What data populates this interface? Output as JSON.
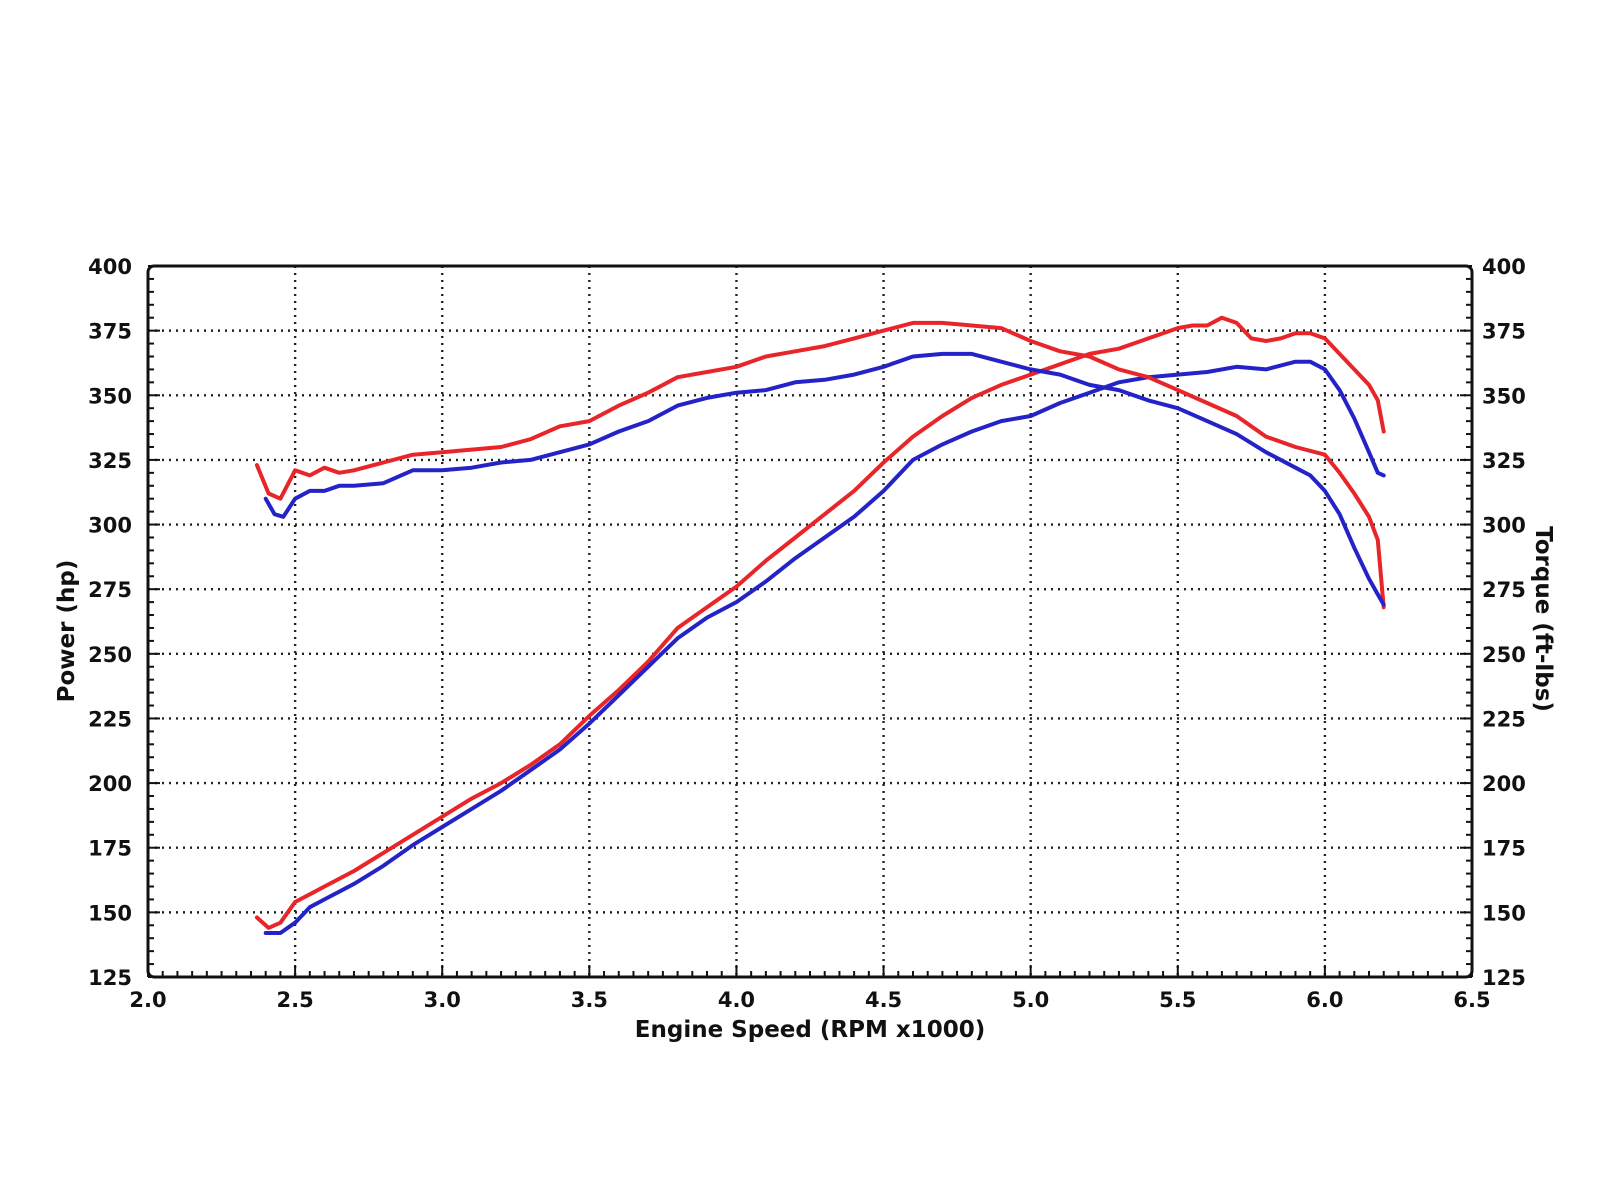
{
  "chart_data": {
    "type": "line",
    "title": "",
    "xlabel": "Engine Speed (RPM x1000)",
    "ylabel_left": "Power (hp)",
    "ylabel_right": "Torque (ft-lbs)",
    "xlim": [
      2.0,
      6.5
    ],
    "ylim": [
      125,
      400
    ],
    "y_right_lim": [
      125,
      400
    ],
    "x_ticks": [
      "2.0",
      "2.5",
      "3.0",
      "3.5",
      "4.0",
      "4.5",
      "5.0",
      "5.5",
      "6.0",
      "6.5"
    ],
    "y_ticks_left": [
      "125",
      "150",
      "175",
      "200",
      "225",
      "250",
      "275",
      "300",
      "325",
      "350",
      "375",
      "400"
    ],
    "y_ticks_right": [
      "125",
      "150",
      "175",
      "200",
      "225",
      "250",
      "275",
      "300",
      "325",
      "350",
      "375",
      "400"
    ],
    "grid": true,
    "colors": {
      "red": "#e8262a",
      "blue": "#2323c8",
      "frame": "#111111"
    },
    "series": [
      {
        "axis": "left",
        "color": "#e8262a",
        "x": [
          2.37,
          2.41,
          2.45,
          2.5,
          2.55,
          2.6,
          2.7,
          2.8,
          2.9,
          3.0,
          3.1,
          3.2,
          3.3,
          3.4,
          3.5,
          3.6,
          3.7,
          3.8,
          3.9,
          4.0,
          4.1,
          4.2,
          4.3,
          4.4,
          4.5,
          4.6,
          4.7,
          4.8,
          4.9,
          5.0,
          5.1,
          5.2,
          5.3,
          5.4,
          5.5,
          5.55,
          5.6,
          5.65,
          5.7,
          5.75,
          5.8,
          5.85,
          5.9,
          5.95,
          6.0,
          6.05,
          6.1,
          6.15,
          6.18,
          6.2
        ],
        "y": [
          148,
          144,
          146,
          154,
          157,
          160,
          166,
          173,
          180,
          187,
          194,
          200,
          207,
          215,
          226,
          236,
          247,
          260,
          268,
          276,
          286,
          295,
          304,
          313,
          324,
          334,
          342,
          349,
          354,
          358,
          362,
          366,
          368,
          372,
          376,
          377,
          377,
          380,
          378,
          372,
          371,
          372,
          374,
          374,
          372,
          366,
          360,
          354,
          348,
          336
        ]
      },
      {
        "axis": "left",
        "color": "#2323c8",
        "x": [
          2.4,
          2.45,
          2.5,
          2.55,
          2.6,
          2.7,
          2.8,
          2.9,
          3.0,
          3.1,
          3.2,
          3.3,
          3.4,
          3.5,
          3.6,
          3.7,
          3.8,
          3.9,
          4.0,
          4.1,
          4.2,
          4.3,
          4.4,
          4.5,
          4.6,
          4.7,
          4.8,
          4.9,
          5.0,
          5.1,
          5.2,
          5.3,
          5.4,
          5.5,
          5.6,
          5.7,
          5.8,
          5.9,
          5.95,
          6.0,
          6.05,
          6.1,
          6.15,
          6.18,
          6.2
        ],
        "y": [
          142,
          142,
          146,
          152,
          155,
          161,
          168,
          176,
          183,
          190,
          197,
          205,
          213,
          223,
          234,
          245,
          256,
          264,
          270,
          278,
          287,
          295,
          303,
          313,
          325,
          331,
          336,
          340,
          342,
          347,
          351,
          355,
          357,
          358,
          359,
          361,
          360,
          363,
          363,
          360,
          352,
          341,
          328,
          320,
          319
        ]
      },
      {
        "axis": "right",
        "color": "#e8262a",
        "x": [
          2.37,
          2.41,
          2.45,
          2.5,
          2.55,
          2.6,
          2.65,
          2.7,
          2.8,
          2.9,
          3.0,
          3.1,
          3.2,
          3.3,
          3.4,
          3.5,
          3.6,
          3.7,
          3.8,
          3.9,
          4.0,
          4.1,
          4.2,
          4.3,
          4.4,
          4.5,
          4.6,
          4.7,
          4.8,
          4.9,
          5.0,
          5.1,
          5.2,
          5.3,
          5.4,
          5.5,
          5.6,
          5.7,
          5.8,
          5.9,
          6.0,
          6.05,
          6.1,
          6.15,
          6.18,
          6.2
        ],
        "y": [
          323,
          312,
          310,
          321,
          319,
          322,
          320,
          321,
          324,
          327,
          328,
          329,
          330,
          333,
          338,
          340,
          346,
          351,
          357,
          359,
          361,
          365,
          367,
          369,
          372,
          375,
          378,
          378,
          377,
          376,
          371,
          367,
          365,
          360,
          357,
          352,
          347,
          342,
          334,
          330,
          327,
          320,
          312,
          303,
          294,
          268
        ]
      },
      {
        "axis": "right",
        "color": "#2323c8",
        "x": [
          2.4,
          2.43,
          2.46,
          2.5,
          2.55,
          2.6,
          2.65,
          2.7,
          2.8,
          2.9,
          3.0,
          3.1,
          3.2,
          3.3,
          3.4,
          3.5,
          3.6,
          3.7,
          3.8,
          3.9,
          4.0,
          4.1,
          4.2,
          4.3,
          4.4,
          4.5,
          4.6,
          4.7,
          4.8,
          4.9,
          5.0,
          5.1,
          5.2,
          5.3,
          5.4,
          5.5,
          5.6,
          5.7,
          5.8,
          5.9,
          5.95,
          6.0,
          6.05,
          6.1,
          6.15,
          6.18,
          6.2
        ],
        "y": [
          310,
          304,
          303,
          310,
          313,
          313,
          315,
          315,
          316,
          321,
          321,
          322,
          324,
          325,
          328,
          331,
          336,
          340,
          346,
          349,
          351,
          352,
          355,
          356,
          358,
          361,
          365,
          366,
          366,
          363,
          360,
          358,
          354,
          352,
          348,
          345,
          340,
          335,
          328,
          322,
          319,
          313,
          304,
          291,
          279,
          273,
          269
        ]
      }
    ]
  }
}
